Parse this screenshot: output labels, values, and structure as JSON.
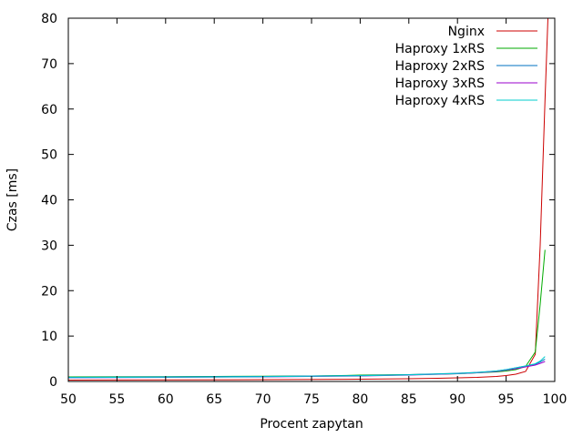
{
  "chart_data": {
    "type": "line",
    "title": "",
    "xlabel": "Procent zapytan",
    "ylabel": "Czas [ms]",
    "xlim": [
      50,
      100
    ],
    "ylim": [
      0,
      80
    ],
    "xticks": [
      50,
      55,
      60,
      65,
      70,
      75,
      80,
      85,
      90,
      95,
      100
    ],
    "yticks": [
      0,
      10,
      20,
      30,
      40,
      50,
      60,
      70,
      80
    ],
    "grid": false,
    "legend_position": "top-right",
    "series": [
      {
        "name": "Nginx",
        "color": "#cc0000",
        "x": [
          50,
          60,
          70,
          80,
          85,
          88,
          90,
          92,
          94,
          95,
          96,
          97,
          98,
          98.5,
          99,
          99.3
        ],
        "y": [
          0.3,
          0.35,
          0.4,
          0.5,
          0.6,
          0.7,
          0.8,
          0.9,
          1.1,
          1.3,
          1.6,
          2.2,
          6,
          30,
          62,
          80
        ]
      },
      {
        "name": "Haproxy 1xRS",
        "color": "#00aa00",
        "x": [
          50,
          60,
          65,
          70,
          75,
          78,
          80,
          85,
          88,
          90,
          92,
          94,
          95,
          96,
          97,
          98,
          98.5,
          99
        ],
        "y": [
          1.0,
          1.05,
          1.1,
          1.15,
          1.2,
          1.3,
          1.4,
          1.5,
          1.6,
          1.7,
          1.9,
          2.1,
          2.3,
          2.6,
          3.3,
          6.5,
          17,
          29
        ]
      },
      {
        "name": "Haproxy 2xRS",
        "color": "#0070c0",
        "x": [
          50,
          60,
          70,
          80,
          85,
          90,
          92,
          94,
          95,
          96,
          97,
          98,
          98.5,
          99
        ],
        "y": [
          0.9,
          1.0,
          1.1,
          1.3,
          1.5,
          1.8,
          2.0,
          2.3,
          2.6,
          3.0,
          3.4,
          3.8,
          4.3,
          4.9
        ]
      },
      {
        "name": "Haproxy 3xRS",
        "color": "#9900cc",
        "x": [
          50,
          60,
          70,
          80,
          85,
          90,
          92,
          94,
          95,
          96,
          97,
          98,
          98.5,
          99
        ],
        "y": [
          0.8,
          0.9,
          1.0,
          1.2,
          1.4,
          1.7,
          1.9,
          2.2,
          2.5,
          2.8,
          3.2,
          3.6,
          4.0,
          4.4
        ]
      },
      {
        "name": "Haproxy 4xRS",
        "color": "#00cccc",
        "x": [
          50,
          60,
          70,
          80,
          85,
          90,
          92,
          94,
          95,
          96,
          97,
          98,
          98.5,
          99
        ],
        "y": [
          0.85,
          0.95,
          1.05,
          1.25,
          1.45,
          1.75,
          1.95,
          2.3,
          2.6,
          3.0,
          3.4,
          3.9,
          4.5,
          5.5
        ]
      }
    ]
  }
}
